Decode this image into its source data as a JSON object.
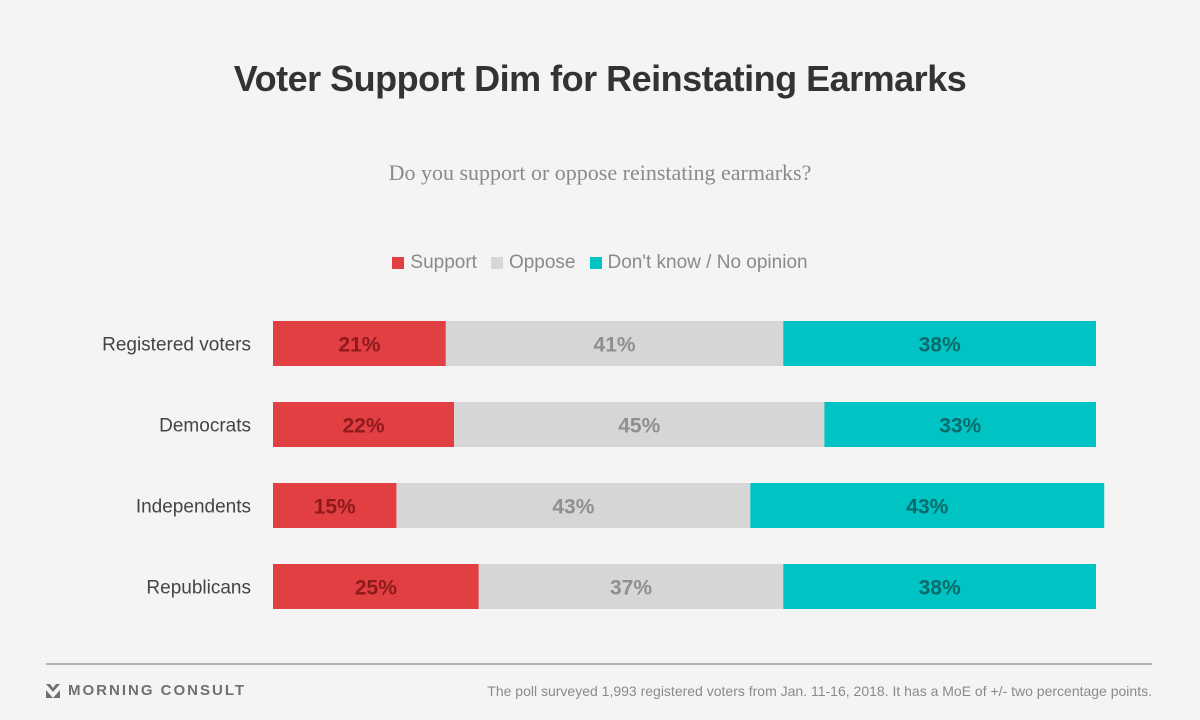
{
  "header": {
    "title": "Voter Support Dim for Reinstating Earmarks",
    "subtitle": "Do you support or oppose reinstating earmarks?"
  },
  "legend": [
    {
      "label": "Support",
      "color": "#e13f42"
    },
    {
      "label": "Oppose",
      "color": "#d6d6d6"
    },
    {
      "label": "Don't know / No opinion",
      "color": "#00c3c3"
    }
  ],
  "footer": {
    "brand": "MORNING CONSULT",
    "brand_icon": "morning-consult-logo-icon",
    "note": "The poll surveyed 1,993 registered voters from Jan. 11-16, 2018. It has a MoE of +/- two percentage points."
  },
  "chart_data": {
    "type": "bar",
    "orientation": "horizontal",
    "stacked": true,
    "title": "Voter Support Dim for Reinstating Earmarks",
    "subtitle": "Do you support or oppose reinstating earmarks?",
    "categories": [
      "Registered voters",
      "Democrats",
      "Independents",
      "Republicans"
    ],
    "series": [
      {
        "name": "Support",
        "color": "#e13f42",
        "label_color": "#8e1a1c",
        "values": [
          21,
          22,
          15,
          25
        ]
      },
      {
        "name": "Oppose",
        "color": "#d6d6d6",
        "label_color": "#8f8f8f",
        "values": [
          41,
          45,
          43,
          37
        ]
      },
      {
        "name": "Don't know / No opinion",
        "color": "#00c3c3",
        "label_color": "#0a6b6b",
        "values": [
          38,
          33,
          43,
          38
        ]
      }
    ],
    "value_suffix": "%",
    "xlim": [
      0,
      100
    ],
    "grid": false,
    "legend_position": "top-center",
    "xlabel": "",
    "ylabel": ""
  }
}
